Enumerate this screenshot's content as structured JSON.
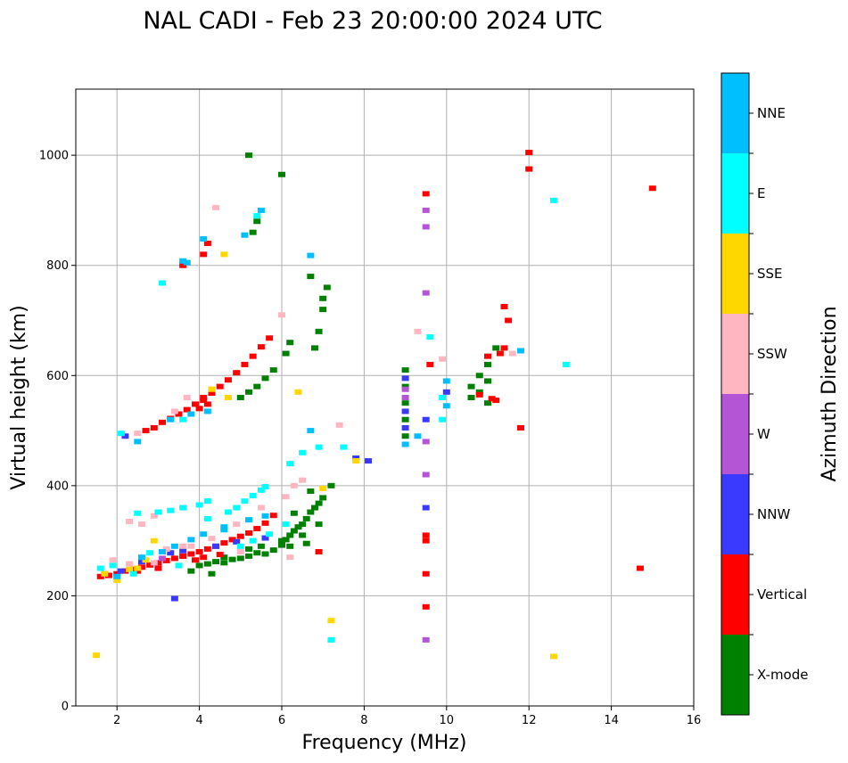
{
  "chart_data": {
    "type": "scatter",
    "title": "NAL CADI - Feb 23 20:00:00 2024 UTC",
    "xlabel": "Frequency (MHz)",
    "ylabel": "Virtual height (km)",
    "xlim": [
      1,
      16
    ],
    "ylim": [
      0,
      1120
    ],
    "xticks": [
      2,
      4,
      6,
      8,
      10,
      12,
      14,
      16
    ],
    "yticks": [
      0,
      200,
      400,
      600,
      800,
      1000
    ],
    "grid": true,
    "colorbar": {
      "label": "Azimuth Direction",
      "categories": [
        {
          "name": "X-mode",
          "color": "#008000"
        },
        {
          "name": "Vertical",
          "color": "#ff0000"
        },
        {
          "name": "NNW",
          "color": "#3a3aff"
        },
        {
          "name": "W",
          "color": "#b455d6"
        },
        {
          "name": "SSW",
          "color": "#ffb6c1"
        },
        {
          "name": "SSE",
          "color": "#ffd700"
        },
        {
          "name": "E",
          "color": "#00ffff"
        },
        {
          "name": "NNE",
          "color": "#00bfff"
        }
      ]
    },
    "series": [
      {
        "name": "X-mode",
        "points": [
          [
            3.8,
            245
          ],
          [
            4.0,
            255
          ],
          [
            4.2,
            258
          ],
          [
            4.4,
            262
          ],
          [
            4.6,
            260
          ],
          [
            4.8,
            266
          ],
          [
            5.0,
            268
          ],
          [
            5.2,
            272
          ],
          [
            5.4,
            278
          ],
          [
            5.6,
            276
          ],
          [
            5.8,
            283
          ],
          [
            6.0,
            292
          ],
          [
            6.1,
            302
          ],
          [
            6.2,
            310
          ],
          [
            6.3,
            318
          ],
          [
            6.4,
            325
          ],
          [
            6.5,
            330
          ],
          [
            6.6,
            340
          ],
          [
            6.7,
            352
          ],
          [
            6.8,
            360
          ],
          [
            6.9,
            368
          ],
          [
            7.0,
            378
          ],
          [
            6.0,
            300
          ],
          [
            6.5,
            310
          ],
          [
            6.6,
            295
          ],
          [
            6.2,
            290
          ],
          [
            5.2,
            285
          ],
          [
            5.5,
            290
          ],
          [
            4.3,
            240
          ],
          [
            4.6,
            270
          ],
          [
            6.8,
            650
          ],
          [
            6.9,
            680
          ],
          [
            7.0,
            720
          ],
          [
            7.1,
            760
          ],
          [
            7.0,
            740
          ],
          [
            6.7,
            780
          ],
          [
            6.1,
            640
          ],
          [
            6.2,
            660
          ],
          [
            5.8,
            610
          ],
          [
            5.6,
            595
          ],
          [
            5.4,
            580
          ],
          [
            5.2,
            570
          ],
          [
            5.0,
            560
          ],
          [
            9.0,
            610
          ],
          [
            9.0,
            580
          ],
          [
            9.0,
            550
          ],
          [
            9.0,
            520
          ],
          [
            9.0,
            490
          ],
          [
            10.6,
            580
          ],
          [
            10.6,
            560
          ],
          [
            10.8,
            600
          ],
          [
            10.8,
            570
          ],
          [
            11.0,
            550
          ],
          [
            11.0,
            620
          ],
          [
            11.2,
            650
          ],
          [
            11.0,
            590
          ],
          [
            5.3,
            860
          ],
          [
            5.4,
            880
          ],
          [
            6.0,
            965
          ],
          [
            5.2,
            1000
          ],
          [
            6.7,
            390
          ],
          [
            6.3,
            350
          ],
          [
            6.9,
            330
          ],
          [
            7.2,
            400
          ]
        ]
      },
      {
        "name": "Vertical",
        "points": [
          [
            1.6,
            235
          ],
          [
            1.8,
            237
          ],
          [
            2.0,
            240
          ],
          [
            2.2,
            245
          ],
          [
            2.4,
            248
          ],
          [
            2.6,
            252
          ],
          [
            2.8,
            256
          ],
          [
            3.0,
            260
          ],
          [
            3.2,
            264
          ],
          [
            3.4,
            268
          ],
          [
            3.6,
            272
          ],
          [
            3.8,
            276
          ],
          [
            4.0,
            280
          ],
          [
            4.2,
            285
          ],
          [
            4.4,
            290
          ],
          [
            4.6,
            296
          ],
          [
            4.8,
            302
          ],
          [
            5.0,
            308
          ],
          [
            5.2,
            314
          ],
          [
            5.4,
            322
          ],
          [
            5.6,
            332
          ],
          [
            5.8,
            346
          ],
          [
            3.5,
            255
          ],
          [
            3.9,
            265
          ],
          [
            4.1,
            270
          ],
          [
            3.0,
            250
          ],
          [
            2.5,
            245
          ],
          [
            4.5,
            275
          ],
          [
            2.7,
            500
          ],
          [
            2.9,
            505
          ],
          [
            3.1,
            515
          ],
          [
            3.3,
            522
          ],
          [
            3.5,
            530
          ],
          [
            3.7,
            538
          ],
          [
            3.9,
            548
          ],
          [
            4.1,
            555
          ],
          [
            4.3,
            568
          ],
          [
            4.5,
            580
          ],
          [
            4.7,
            592
          ],
          [
            4.9,
            605
          ],
          [
            5.1,
            620
          ],
          [
            5.3,
            635
          ],
          [
            5.5,
            652
          ],
          [
            5.7,
            668
          ],
          [
            4.0,
            540
          ],
          [
            4.2,
            548
          ],
          [
            4.1,
            560
          ],
          [
            3.6,
            800
          ],
          [
            4.1,
            820
          ],
          [
            4.2,
            840
          ],
          [
            9.5,
            930
          ],
          [
            9.6,
            620
          ],
          [
            10.8,
            565
          ],
          [
            11.1,
            558
          ],
          [
            11.3,
            640
          ],
          [
            11.5,
            700
          ],
          [
            11.4,
            725
          ],
          [
            11.8,
            505
          ],
          [
            12.0,
            1005
          ],
          [
            12.0,
            975
          ],
          [
            15.0,
            940
          ],
          [
            14.7,
            250
          ],
          [
            9.5,
            300
          ],
          [
            9.5,
            310
          ],
          [
            9.5,
            240
          ],
          [
            9.5,
            180
          ],
          [
            6.9,
            280
          ],
          [
            11.0,
            635
          ],
          [
            11.2,
            555
          ],
          [
            11.4,
            650
          ]
        ]
      },
      {
        "name": "NNW",
        "points": [
          [
            1.7,
            240
          ],
          [
            2.1,
            245
          ],
          [
            2.6,
            262
          ],
          [
            3.3,
            278
          ],
          [
            3.6,
            282
          ],
          [
            4.4,
            290
          ],
          [
            4.9,
            298
          ],
          [
            5.6,
            305
          ],
          [
            9.0,
            595
          ],
          [
            9.0,
            535
          ],
          [
            9.0,
            505
          ],
          [
            9.5,
            360
          ],
          [
            9.5,
            520
          ],
          [
            10.0,
            570
          ],
          [
            7.8,
            450
          ],
          [
            8.1,
            445
          ],
          [
            3.4,
            195
          ],
          [
            2.2,
            490
          ]
        ]
      },
      {
        "name": "W",
        "points": [
          [
            9.5,
            900
          ],
          [
            9.5,
            870
          ],
          [
            9.5,
            750
          ],
          [
            9.5,
            480
          ],
          [
            9.5,
            420
          ],
          [
            9.5,
            120
          ],
          [
            9.0,
            560
          ],
          [
            9.0,
            575
          ],
          [
            3.1,
            268
          ]
        ]
      },
      {
        "name": "SSW",
        "points": [
          [
            1.9,
            265
          ],
          [
            2.3,
            258
          ],
          [
            2.9,
            260
          ],
          [
            3.2,
            285
          ],
          [
            3.6,
            290
          ],
          [
            4.3,
            304
          ],
          [
            4.9,
            330
          ],
          [
            5.5,
            360
          ],
          [
            6.1,
            380
          ],
          [
            6.3,
            400
          ],
          [
            6.5,
            410
          ],
          [
            2.3,
            335
          ],
          [
            2.6,
            330
          ],
          [
            2.9,
            345
          ],
          [
            3.7,
            560
          ],
          [
            3.4,
            535
          ],
          [
            3.8,
            290
          ],
          [
            4.4,
            905
          ],
          [
            6.0,
            710
          ],
          [
            9.3,
            680
          ],
          [
            9.9,
            630
          ],
          [
            11.6,
            640
          ],
          [
            7.4,
            510
          ],
          [
            2.5,
            495
          ],
          [
            5.0,
            280
          ],
          [
            6.2,
            270
          ]
        ]
      },
      {
        "name": "SSE",
        "points": [
          [
            1.5,
            92
          ],
          [
            1.7,
            240
          ],
          [
            2.0,
            228
          ],
          [
            2.3,
            248
          ],
          [
            2.5,
            250
          ],
          [
            2.7,
            265
          ],
          [
            4.6,
            820
          ],
          [
            4.3,
            575
          ],
          [
            4.7,
            560
          ],
          [
            6.4,
            570
          ],
          [
            7.0,
            395
          ],
          [
            7.2,
            155
          ],
          [
            7.8,
            445
          ],
          [
            12.6,
            90
          ],
          [
            2.9,
            300
          ]
        ]
      },
      {
        "name": "E",
        "points": [
          [
            1.6,
            250
          ],
          [
            1.9,
            255
          ],
          [
            2.4,
            240
          ],
          [
            2.8,
            278
          ],
          [
            3.0,
            352
          ],
          [
            3.3,
            355
          ],
          [
            3.6,
            360
          ],
          [
            4.0,
            365
          ],
          [
            4.2,
            372
          ],
          [
            4.7,
            352
          ],
          [
            4.9,
            360
          ],
          [
            5.1,
            372
          ],
          [
            5.3,
            382
          ],
          [
            5.5,
            392
          ],
          [
            5.6,
            398
          ],
          [
            5.0,
            290
          ],
          [
            5.3,
            300
          ],
          [
            5.7,
            312
          ],
          [
            6.1,
            330
          ],
          [
            6.2,
            440
          ],
          [
            6.5,
            460
          ],
          [
            6.9,
            470
          ],
          [
            7.5,
            470
          ],
          [
            7.2,
            120
          ],
          [
            2.1,
            495
          ],
          [
            3.1,
            768
          ],
          [
            5.4,
            890
          ],
          [
            9.9,
            560
          ],
          [
            9.9,
            520
          ],
          [
            9.6,
            670
          ],
          [
            12.6,
            918
          ],
          [
            12.9,
            620
          ],
          [
            3.5,
            255
          ],
          [
            4.2,
            340
          ],
          [
            2.5,
            350
          ],
          [
            3.6,
            520
          ]
        ]
      },
      {
        "name": "NNE",
        "points": [
          [
            2.0,
            235
          ],
          [
            2.6,
            270
          ],
          [
            3.1,
            280
          ],
          [
            3.4,
            290
          ],
          [
            3.8,
            302
          ],
          [
            4.1,
            312
          ],
          [
            4.6,
            320
          ],
          [
            5.2,
            338
          ],
          [
            5.6,
            345
          ],
          [
            3.6,
            808
          ],
          [
            3.7,
            805
          ],
          [
            4.1,
            848
          ],
          [
            5.1,
            855
          ],
          [
            5.5,
            900
          ],
          [
            6.7,
            818
          ],
          [
            6.7,
            500
          ],
          [
            9.0,
            475
          ],
          [
            9.3,
            490
          ],
          [
            10.0,
            590
          ],
          [
            10.0,
            545
          ],
          [
            11.8,
            645
          ],
          [
            2.5,
            480
          ],
          [
            3.3,
            520
          ],
          [
            3.8,
            530
          ],
          [
            4.2,
            535
          ],
          [
            4.6,
            325
          ]
        ]
      }
    ]
  }
}
